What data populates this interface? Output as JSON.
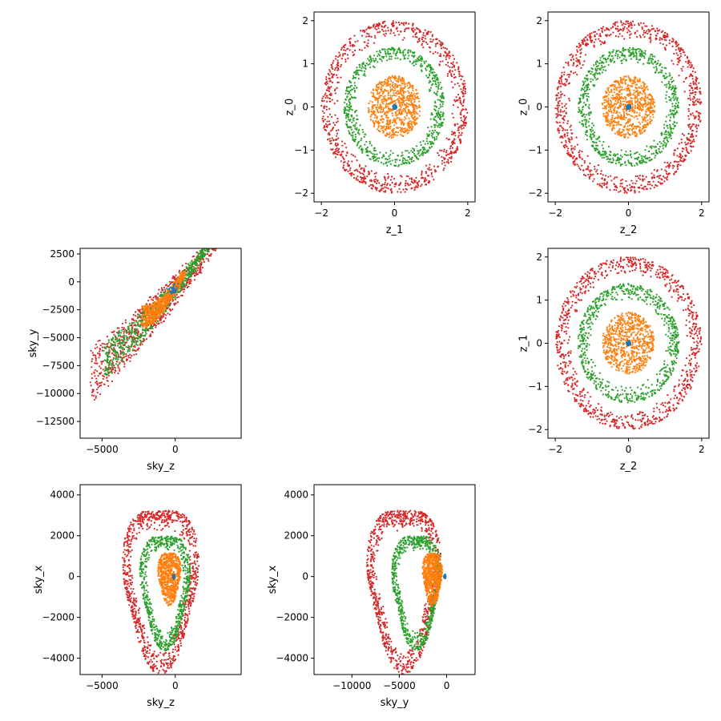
{
  "chart_data": [
    {
      "type": "scatter",
      "id": "z1-z0",
      "xlabel": "z_1",
      "ylabel": "z_0",
      "xlim": [
        -2.2,
        2.2
      ],
      "ylim": [
        -2.2,
        2.2
      ],
      "xticks": [
        -2,
        0,
        2
      ],
      "yticks": [
        -2,
        -1,
        0,
        1,
        2
      ],
      "grid": false,
      "series": [
        {
          "color": "#d62728",
          "shape": "ring",
          "inner": 1.55,
          "outer": 2.0
        },
        {
          "color": "#2ca02c",
          "shape": "ring",
          "inner": 1.0,
          "outer": 1.38
        },
        {
          "color": "#ff7f0e",
          "shape": "disk",
          "inner": 0.0,
          "outer": 0.72
        },
        {
          "color": "#1f77b4",
          "shape": "disk",
          "inner": 0.0,
          "outer": 0.06
        }
      ]
    },
    {
      "type": "scatter",
      "id": "z2-z0",
      "xlabel": "z_2",
      "ylabel": "z_0",
      "xlim": [
        -2.2,
        2.2
      ],
      "ylim": [
        -2.2,
        2.2
      ],
      "xticks": [
        -2,
        0,
        2
      ],
      "yticks": [
        -2,
        -1,
        0,
        1,
        2
      ],
      "grid": false,
      "series": [
        {
          "color": "#d62728",
          "shape": "ring",
          "inner": 1.55,
          "outer": 2.0
        },
        {
          "color": "#2ca02c",
          "shape": "ring",
          "inner": 1.0,
          "outer": 1.38
        },
        {
          "color": "#ff7f0e",
          "shape": "disk",
          "inner": 0.0,
          "outer": 0.72
        },
        {
          "color": "#1f77b4",
          "shape": "disk",
          "inner": 0.0,
          "outer": 0.06
        }
      ]
    },
    {
      "type": "scatter",
      "id": "skyz-skyy",
      "xlabel": "sky_z",
      "ylabel": "sky_y",
      "xlim": [
        -6500,
        4500
      ],
      "ylim": [
        -14000,
        3000
      ],
      "xticks": [
        -5000,
        0
      ],
      "yticks": [
        -12500,
        -10000,
        -7500,
        -5000,
        -2500,
        0,
        2500
      ],
      "grid": false,
      "series": [
        {
          "color": "#d62728",
          "shape": "band",
          "x0": -5700,
          "x1": 4200,
          "half": 1700,
          "curve": -380
        },
        {
          "color": "#2ca02c",
          "shape": "band",
          "x0": -4800,
          "x1": 2400,
          "half": 1100,
          "curve": -380
        },
        {
          "color": "#ff7f0e",
          "shape": "band",
          "x0": -2200,
          "x1": 600,
          "half": 700,
          "curve": -380
        },
        {
          "color": "#1f77b4",
          "shape": "band",
          "x0": -300,
          "x1": 100,
          "half": 150,
          "curve": -380
        }
      ]
    },
    {
      "type": "scatter",
      "id": "z2-z1",
      "xlabel": "z_2",
      "ylabel": "z_1",
      "xlim": [
        -2.2,
        2.2
      ],
      "ylim": [
        -2.2,
        2.2
      ],
      "xticks": [
        -2,
        0,
        2
      ],
      "yticks": [
        -2,
        -1,
        0,
        1,
        2
      ],
      "grid": false,
      "series": [
        {
          "color": "#d62728",
          "shape": "ring",
          "inner": 1.55,
          "outer": 2.0
        },
        {
          "color": "#2ca02c",
          "shape": "ring",
          "inner": 1.0,
          "outer": 1.38
        },
        {
          "color": "#ff7f0e",
          "shape": "disk",
          "inner": 0.0,
          "outer": 0.72
        },
        {
          "color": "#1f77b4",
          "shape": "disk",
          "inner": 0.0,
          "outer": 0.06
        }
      ]
    },
    {
      "type": "scatter",
      "id": "skyz-skyx",
      "xlabel": "sky_z",
      "ylabel": "sky_x",
      "xlim": [
        -6500,
        4500
      ],
      "ylim": [
        -4800,
        4500
      ],
      "xticks": [
        -5000,
        0
      ],
      "yticks": [
        -4000,
        -2000,
        0,
        2000,
        4000
      ],
      "grid": false,
      "series": [
        {
          "color": "#d62728",
          "shape": "blob",
          "cx": -1000,
          "cy": -300,
          "rx": 5000,
          "ry": 4000,
          "inner": 0.72
        },
        {
          "color": "#2ca02c",
          "shape": "blob",
          "cx": -700,
          "cy": -500,
          "rx": 3300,
          "ry": 2800,
          "inner": 0.7
        },
        {
          "color": "#ff7f0e",
          "shape": "blob",
          "cx": -400,
          "cy": 0,
          "rx": 1500,
          "ry": 1300,
          "inner": 0.0
        },
        {
          "color": "#1f77b4",
          "shape": "blob",
          "cx": -100,
          "cy": 0,
          "rx": 120,
          "ry": 120,
          "inner": 0.0
        }
      ]
    },
    {
      "type": "scatter",
      "id": "skyy-skyx",
      "xlabel": "sky_y",
      "ylabel": "sky_x",
      "xlim": [
        -14000,
        3000
      ],
      "ylim": [
        -4800,
        4500
      ],
      "xticks": [
        -10000,
        -5000,
        0
      ],
      "yticks": [
        -4000,
        -2000,
        0,
        2000,
        4000
      ],
      "grid": false,
      "series": [
        {
          "color": "#d62728",
          "shape": "blob",
          "cx": -4500,
          "cy": -300,
          "rx": 7500,
          "ry": 4000,
          "inner": 0.72
        },
        {
          "color": "#2ca02c",
          "shape": "blob",
          "cx": -3200,
          "cy": -500,
          "rx": 5000,
          "ry": 2800,
          "inner": 0.7
        },
        {
          "color": "#ff7f0e",
          "shape": "blob",
          "cx": -1500,
          "cy": 0,
          "rx": 2000,
          "ry": 1300,
          "inner": 0.0
        },
        {
          "color": "#1f77b4",
          "shape": "blob",
          "cx": -200,
          "cy": 0,
          "rx": 200,
          "ry": 120,
          "inner": 0.0
        }
      ]
    }
  ]
}
